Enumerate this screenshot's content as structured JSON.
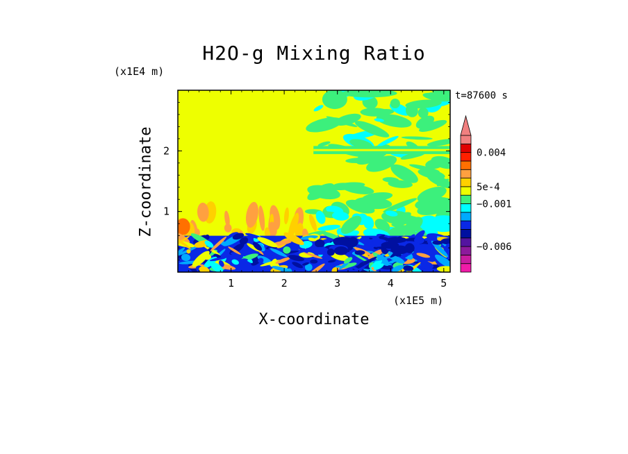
{
  "chart_data": {
    "type": "heatmap",
    "title": "H2O-g Mixing Ratio",
    "xlabel": "X-coordinate",
    "ylabel": "Z-coordinate",
    "x_unit": "(x1E5 m)",
    "y_unit": "(x1E4 m)",
    "time_label": "t=87600 s",
    "xlim": [
      0,
      5.12
    ],
    "ylim": [
      0,
      3.0
    ],
    "x_ticks": [
      1,
      2,
      3,
      4,
      5
    ],
    "y_ticks": [
      1,
      2
    ],
    "grid": false,
    "colorbar": {
      "levels": [
        -0.009,
        -0.008,
        -0.007,
        -0.006,
        -0.005,
        -0.004,
        -0.003,
        -0.002,
        -0.001,
        0,
        0.0005,
        0.001,
        0.002,
        0.003,
        0.004,
        0.005
      ],
      "colors": [
        "#f01ba8",
        "#c81ca0",
        "#8c1a9c",
        "#5414a0",
        "#0010a0",
        "#0a28e6",
        "#00aaff",
        "#00ffff",
        "#3cf07c",
        "#eeff00",
        "#ffd000",
        "#ffa040",
        "#ff7000",
        "#ff2000",
        "#e00000",
        "#f08080"
      ],
      "extend_max": true,
      "tick_labels": [
        {
          "value": 0.004,
          "label": "0.004"
        },
        {
          "value": 0.0005,
          "label": "5e-4"
        },
        {
          "value": -0.001,
          "label": "−0.001"
        },
        {
          "value": -0.006,
          "label": "−0.006"
        }
      ]
    },
    "regions": [
      {
        "x": [
          0,
          2.55
        ],
        "z": [
          0.6,
          3.0
        ],
        "band": 9
      },
      {
        "x": [
          2.55,
          5.12
        ],
        "z": [
          0.3,
          3.0
        ],
        "band": 9
      },
      {
        "x": [
          2.55,
          5.12
        ],
        "z": [
          0.9,
          3.0
        ],
        "band": 8
      },
      {
        "x": [
          0,
          5.12
        ],
        "z": [
          0,
          0.6
        ],
        "band": 5
      }
    ]
  }
}
